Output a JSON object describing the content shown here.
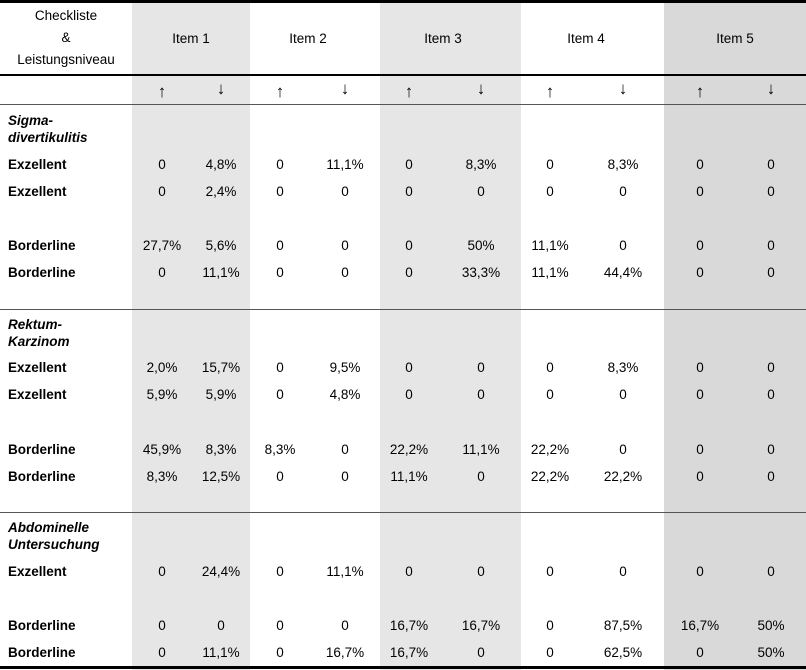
{
  "header": {
    "label_lines": [
      "Checkliste",
      "&",
      "Leistungsniveau"
    ],
    "items": [
      "Item 1",
      "Item 2",
      "Item 3",
      "Item 4",
      "Item 5"
    ]
  },
  "arrows": {
    "up": "↑",
    "down": "↓"
  },
  "sections": [
    {
      "title_lines": [
        "Sigma-",
        "divertikulitis"
      ],
      "rows": [
        {
          "label": "Exzellent",
          "values": [
            "0",
            "4,8%",
            "0",
            "11,1%",
            "0",
            "8,3%",
            "0",
            "8,3%",
            "0",
            "0"
          ]
        },
        {
          "label": "Exzellent",
          "values": [
            "0",
            "2,4%",
            "0",
            "0",
            "0",
            "0",
            "0",
            "0",
            "0",
            "0"
          ]
        },
        {
          "label": "Borderline",
          "values": [
            "27,7%",
            "5,6%",
            "0",
            "0",
            "0",
            "50%",
            "11,1%",
            "0",
            "0",
            "0"
          ]
        },
        {
          "label": "Borderline",
          "values": [
            "0",
            "11,1%",
            "0",
            "0",
            "0",
            "33,3%",
            "11,1%",
            "44,4%",
            "0",
            "0"
          ]
        }
      ]
    },
    {
      "title_lines": [
        "Rektum-",
        "Karzinom"
      ],
      "rows": [
        {
          "label": "Exzellent",
          "values": [
            "2,0%",
            "15,7%",
            "0",
            "9,5%",
            "0",
            "0",
            "0",
            "8,3%",
            "0",
            "0"
          ]
        },
        {
          "label": "Exzellent",
          "values": [
            "5,9%",
            "5,9%",
            "0",
            "4,8%",
            "0",
            "0",
            "0",
            "0",
            "0",
            "0"
          ]
        },
        {
          "label": "Borderline",
          "values": [
            "45,9%",
            "8,3%",
            "8,3%",
            "0",
            "22,2%",
            "11,1%",
            "22,2%",
            "0",
            "0",
            "0"
          ]
        },
        {
          "label": "Borderline",
          "values": [
            "8,3%",
            "12,5%",
            "0",
            "0",
            "11,1%",
            "0",
            "22,2%",
            "22,2%",
            "0",
            "0"
          ]
        }
      ]
    },
    {
      "title_lines": [
        "Abdominelle",
        "Untersuchung"
      ],
      "rows": [
        {
          "label": "Exzellent",
          "values": [
            "0",
            "24,4%",
            "0",
            "11,1%",
            "0",
            "0",
            "0",
            "0",
            "0",
            "0"
          ]
        },
        {
          "label": "Borderline",
          "values": [
            "0",
            "0",
            "0",
            "0",
            "16,7%",
            "16,7%",
            "0",
            "87,5%",
            "16,7%",
            "50%"
          ]
        },
        {
          "label": "Borderline",
          "values": [
            "0",
            "11,1%",
            "0",
            "16,7%",
            "16,7%",
            "0",
            "0",
            "62,5%",
            "0",
            "50%"
          ]
        }
      ]
    }
  ]
}
